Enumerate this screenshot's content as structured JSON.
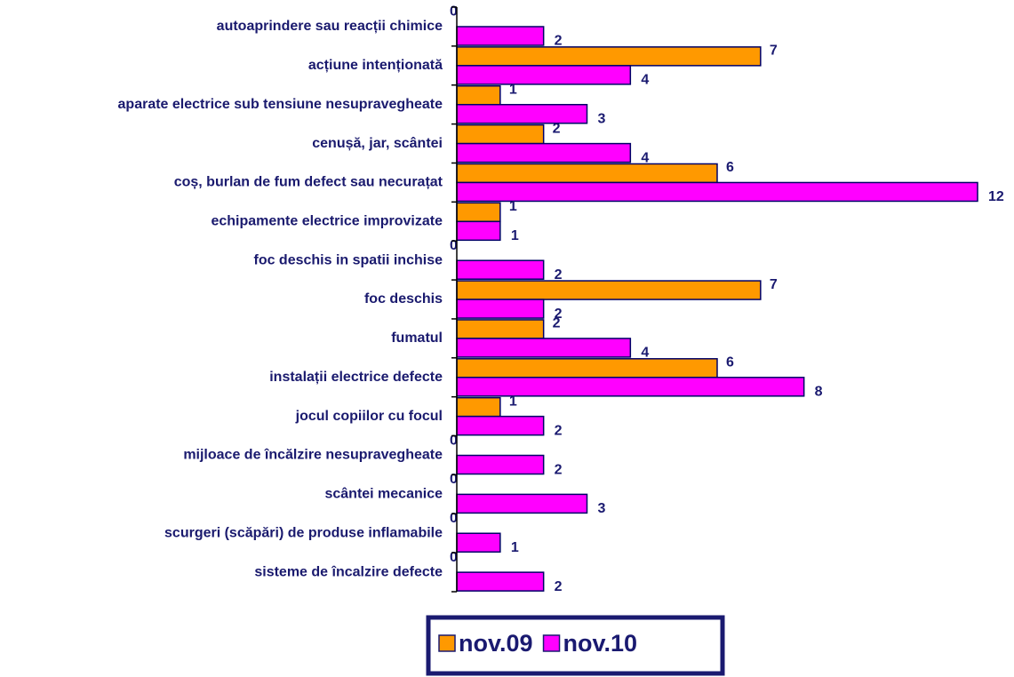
{
  "chart_data": {
    "type": "hbar",
    "categories": [
      "autoaprindere sau reacții chimice",
      "acțiune intenționată",
      "aparate electrice sub tensiune nesupravegheate",
      "cenușă, jar, scântei",
      "coș, burlan  de fum defect sau necurațat",
      "echipamente electrice improvizate",
      "foc deschis in spatii inchise",
      "foc deschis",
      "fumatul",
      "instalații electrice defecte",
      "jocul copiilor cu focul",
      "mijloace de încălzire nesupravegheate",
      "scântei mecanice",
      "scurgeri (scăpări) de produse inflamabile",
      "sisteme de încalzire defecte"
    ],
    "series": [
      {
        "name": "nov.09",
        "color": "#ff9900",
        "values": [
          0,
          7,
          1,
          2,
          6,
          1,
          0,
          7,
          2,
          6,
          1,
          0,
          0,
          0,
          0
        ]
      },
      {
        "name": "nov.10",
        "color": "#ff00ff",
        "values": [
          2,
          4,
          3,
          4,
          12,
          1,
          2,
          2,
          4,
          8,
          2,
          2,
          3,
          1,
          2
        ]
      }
    ],
    "xlim": [
      0,
      12
    ],
    "legend": "bottom"
  }
}
